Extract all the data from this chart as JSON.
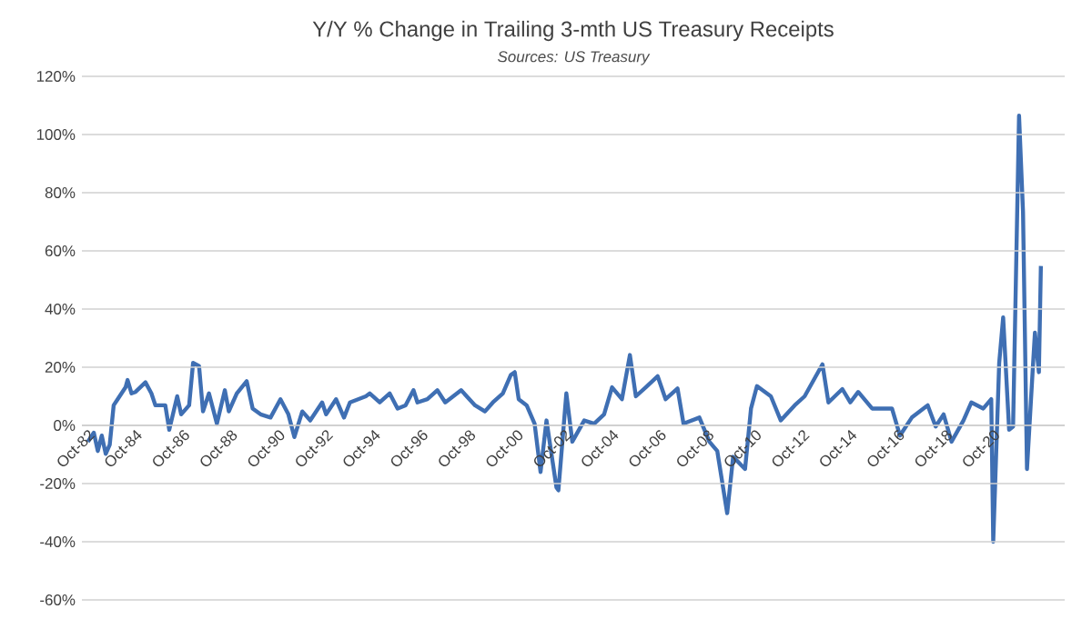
{
  "chart_data": {
    "type": "line",
    "title": "Y/Y % Change in Trailing 3-mth US Treasury Receipts",
    "subtitle": "Sources: US Treasury",
    "x": [
      "1982-10",
      "1983-01",
      "1983-03",
      "1983-05",
      "1983-07",
      "1983-09",
      "1983-11",
      "1984-01",
      "1984-05",
      "1984-06",
      "1984-08",
      "1984-10",
      "1985-03",
      "1985-06",
      "1985-08",
      "1986-01",
      "1986-03",
      "1986-07",
      "1986-09",
      "1987-01",
      "1987-03",
      "1987-06",
      "1987-08",
      "1987-11",
      "1988-03",
      "1988-07",
      "1988-09",
      "1989-01",
      "1989-06",
      "1989-09",
      "1990-01",
      "1990-06",
      "1990-11",
      "1991-03",
      "1991-06",
      "1991-10",
      "1992-02",
      "1992-08",
      "1992-10",
      "1993-03",
      "1993-07",
      "1993-10",
      "1994-06",
      "1994-08",
      "1995-01",
      "1995-06",
      "1995-10",
      "1996-02",
      "1996-06",
      "1996-08",
      "1997-01",
      "1997-06",
      "1997-10",
      "1998-06",
      "1999-01",
      "1999-06",
      "1999-10",
      "2000-03",
      "2000-07",
      "2000-09",
      "2000-11",
      "2001-03",
      "2001-07",
      "2001-10",
      "2002-01",
      "2002-06",
      "2002-07",
      "2002-11",
      "2003-02",
      "2003-08",
      "2004-01",
      "2004-06",
      "2004-10",
      "2005-03",
      "2005-07",
      "2005-10",
      "2006-03",
      "2006-09",
      "2007-01",
      "2007-07",
      "2007-10",
      "2008-06",
      "2008-11",
      "2009-03",
      "2009-08",
      "2009-11",
      "2010-05",
      "2010-08",
      "2010-11",
      "2011-06",
      "2011-11",
      "2012-06",
      "2012-11",
      "2013-08",
      "2013-11",
      "2014-06",
      "2014-10",
      "2015-02",
      "2015-09",
      "2016-07",
      "2016-11",
      "2017-05",
      "2018-01",
      "2018-05",
      "2018-09",
      "2019-01",
      "2019-07",
      "2019-11",
      "2020-05",
      "2020-09",
      "2020-10",
      "2021-01",
      "2021-03",
      "2021-06",
      "2021-08",
      "2021-11",
      "2022-01",
      "2022-03",
      "2022-06",
      "2022-07",
      "2022-09",
      "2022-10"
    ],
    "values": [
      -5.6,
      -2.5,
      -8.8,
      -3.5,
      -9.8,
      -6.7,
      6.9,
      9.0,
      13.1,
      15.6,
      11.0,
      11.5,
      14.8,
      11.0,
      6.9,
      6.9,
      -1.5,
      10.0,
      3.8,
      6.9,
      21.5,
      20.4,
      4.8,
      11.0,
      0.6,
      12.1,
      4.8,
      11.0,
      15.2,
      5.8,
      3.8,
      2.7,
      9.0,
      3.8,
      -4.0,
      4.8,
      1.7,
      7.9,
      3.8,
      9.0,
      2.7,
      7.9,
      10.0,
      11.0,
      7.9,
      11.0,
      5.8,
      6.9,
      12.1,
      7.9,
      9.0,
      12.1,
      7.9,
      12.1,
      6.9,
      4.8,
      7.9,
      11.0,
      17.3,
      18.3,
      9.0,
      6.9,
      0.6,
      -16.0,
      1.7,
      -21.3,
      -22.3,
      11.0,
      -5.6,
      1.7,
      0.6,
      3.8,
      13.1,
      9.0,
      24.2,
      10.0,
      13.1,
      16.9,
      9.0,
      12.7,
      0.6,
      2.7,
      -5.6,
      -8.8,
      -30.2,
      -10.8,
      -15.0,
      5.8,
      13.5,
      10.0,
      1.7,
      6.9,
      10.0,
      21.0,
      7.9,
      12.5,
      7.9,
      11.5,
      5.8,
      5.8,
      -3.5,
      2.7,
      6.9,
      -0.4,
      3.8,
      -5.6,
      1.7,
      7.9,
      5.8,
      9.0,
      -40.0,
      21.5,
      37.1,
      -1.5,
      -0.4,
      106.5,
      73.5,
      -15.0,
      20.4,
      31.9,
      18.3,
      54.8
    ],
    "color": "#3f6fb3",
    "grid": "y",
    "xlim": [
      "1982-07",
      "2023-10"
    ],
    "xticks": [
      {
        "value": "1982-10",
        "label": "Oct-82"
      },
      {
        "value": "1984-10",
        "label": "Oct-84"
      },
      {
        "value": "1986-10",
        "label": "Oct-86"
      },
      {
        "value": "1988-10",
        "label": "Oct-88"
      },
      {
        "value": "1990-10",
        "label": "Oct-90"
      },
      {
        "value": "1992-10",
        "label": "Oct-92"
      },
      {
        "value": "1994-10",
        "label": "Oct-94"
      },
      {
        "value": "1996-10",
        "label": "Oct-96"
      },
      {
        "value": "1998-10",
        "label": "Oct-98"
      },
      {
        "value": "2000-10",
        "label": "Oct-00"
      },
      {
        "value": "2002-10",
        "label": "Oct-02"
      },
      {
        "value": "2004-10",
        "label": "Oct-04"
      },
      {
        "value": "2006-10",
        "label": "Oct-06"
      },
      {
        "value": "2008-10",
        "label": "Oct-08"
      },
      {
        "value": "2010-10",
        "label": "Oct-10"
      },
      {
        "value": "2012-10",
        "label": "Oct-12"
      },
      {
        "value": "2014-10",
        "label": "Oct-14"
      },
      {
        "value": "2016-10",
        "label": "Oct-16"
      },
      {
        "value": "2018-10",
        "label": "Oct-18"
      },
      {
        "value": "2020-10",
        "label": "Oct-20"
      }
    ],
    "ylim": [
      -60,
      120
    ],
    "yticks": [
      {
        "value": -60,
        "label": "-60%"
      },
      {
        "value": -40,
        "label": "-40%"
      },
      {
        "value": -20,
        "label": "-20%"
      },
      {
        "value": 0,
        "label": "0%"
      },
      {
        "value": 20,
        "label": "20%"
      },
      {
        "value": 40,
        "label": "40%"
      },
      {
        "value": 60,
        "label": "60%"
      },
      {
        "value": 80,
        "label": "80%"
      },
      {
        "value": 100,
        "label": "100%"
      },
      {
        "value": 120,
        "label": "120%"
      }
    ]
  }
}
